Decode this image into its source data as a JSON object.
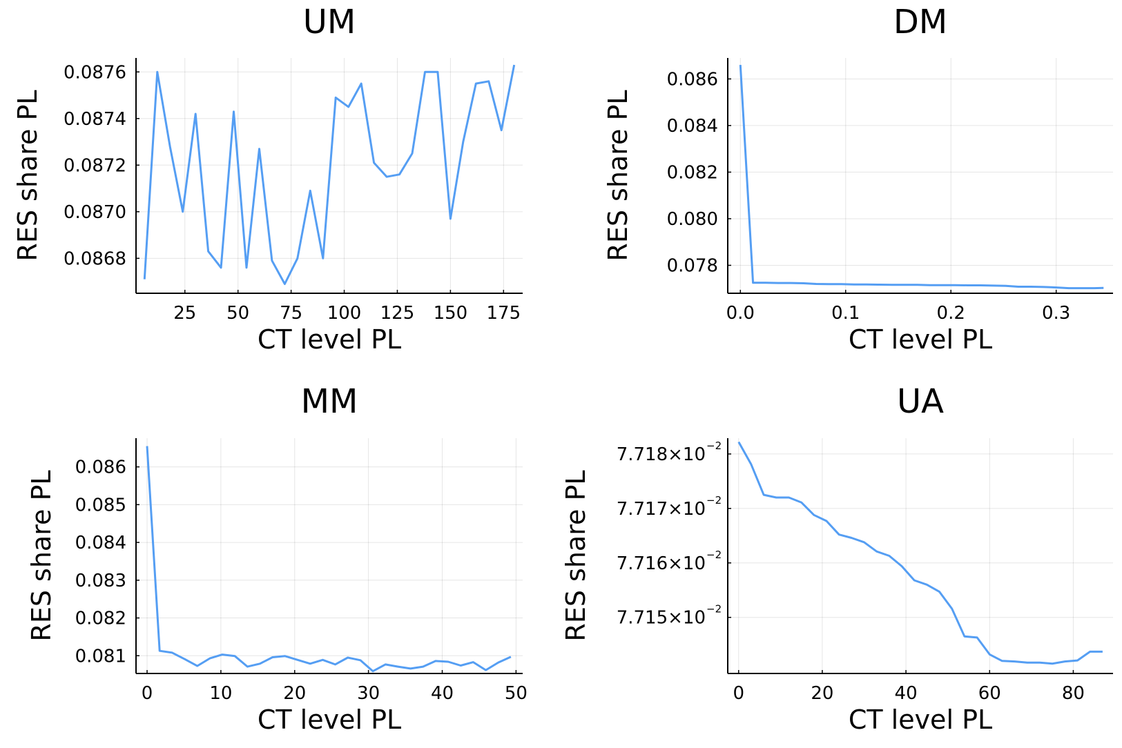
{
  "chart_data": [
    {
      "type": "line",
      "title": "UM",
      "xlabel": "CT level PL",
      "ylabel": "RES share PL",
      "xlim": [
        2,
        184
      ],
      "ylim": [
        0.08665,
        0.08766
      ],
      "xticks": [
        25,
        50,
        75,
        100,
        125,
        150,
        175
      ],
      "xtick_labels": [
        "25",
        "50",
        "75",
        "100",
        "125",
        "150",
        "175"
      ],
      "yticks": [
        0.0868,
        0.087,
        0.0872,
        0.0874,
        0.0876
      ],
      "ytick_labels": [
        "0.0868",
        "0.0870",
        "0.0872",
        "0.0874",
        "0.0876"
      ],
      "grid": true,
      "color": "#559ef3",
      "series": [
        {
          "x": [
            6,
            12,
            18,
            24,
            30,
            36,
            42,
            48,
            54,
            60,
            66,
            72,
            78,
            84,
            90,
            96,
            102,
            108,
            114,
            120,
            126,
            132,
            138,
            144,
            150,
            156,
            162,
            168,
            174,
            180
          ],
          "y": [
            0.08671,
            0.0876,
            0.08728,
            0.087,
            0.08742,
            0.08683,
            0.08676,
            0.08743,
            0.08676,
            0.08727,
            0.08679,
            0.08669,
            0.0868,
            0.08709,
            0.0868,
            0.08749,
            0.08745,
            0.08755,
            0.08721,
            0.08715,
            0.08716,
            0.08725,
            0.0876,
            0.0876,
            0.08697,
            0.0873,
            0.08755,
            0.08756,
            0.08735,
            0.08763
          ]
        }
      ]
    },
    {
      "type": "line",
      "title": "DM",
      "xlabel": "CT level PL",
      "ylabel": "RES share PL",
      "xlim": [
        -0.012,
        0.354
      ],
      "ylim": [
        0.0768,
        0.0869
      ],
      "xticks": [
        0,
        0.1,
        0.2,
        0.3
      ],
      "xtick_labels": [
        "0.0",
        "0.1",
        "0.2",
        "0.3"
      ],
      "yticks": [
        0.078,
        0.08,
        0.082,
        0.084,
        0.086
      ],
      "ytick_labels": [
        "0.078",
        "0.080",
        "0.082",
        "0.084",
        "0.086"
      ],
      "grid": true,
      "color": "#559ef3",
      "series": [
        {
          "x": [
            0,
            0.012,
            0.024,
            0.036,
            0.048,
            0.06,
            0.072,
            0.084,
            0.096,
            0.108,
            0.12,
            0.132,
            0.144,
            0.156,
            0.168,
            0.18,
            0.192,
            0.204,
            0.216,
            0.228,
            0.24,
            0.252,
            0.264,
            0.276,
            0.288,
            0.3,
            0.312,
            0.324,
            0.336,
            0.345
          ],
          "y": [
            0.0866,
            0.07725,
            0.07725,
            0.07724,
            0.07724,
            0.07723,
            0.0772,
            0.07719,
            0.07719,
            0.07718,
            0.07718,
            0.07717,
            0.07716,
            0.07716,
            0.07716,
            0.07715,
            0.07715,
            0.07715,
            0.07714,
            0.07714,
            0.07713,
            0.07712,
            0.07708,
            0.07708,
            0.07707,
            0.07705,
            0.07702,
            0.07702,
            0.07702,
            0.07703
          ]
        }
      ]
    },
    {
      "type": "line",
      "title": "MM",
      "xlabel": "CT level PL",
      "ylabel": "RES share PL",
      "xlim": [
        -1.5,
        50.9
      ],
      "ylim": [
        0.08053,
        0.08676
      ],
      "xticks": [
        0,
        10,
        20,
        30,
        40,
        50
      ],
      "xtick_labels": [
        "0",
        "10",
        "20",
        "30",
        "40",
        "50"
      ],
      "yticks": [
        0.081,
        0.082,
        0.083,
        0.084,
        0.085,
        0.086
      ],
      "ytick_labels": [
        "0.081",
        "0.082",
        "0.083",
        "0.084",
        "0.085",
        "0.086"
      ],
      "grid": true,
      "color": "#559ef3",
      "series": [
        {
          "x": [
            0,
            1.7,
            3.4,
            5.1,
            6.8,
            8.5,
            10.2,
            11.9,
            13.6,
            15.3,
            17,
            18.7,
            20.4,
            22.1,
            23.8,
            25.5,
            27.2,
            28.9,
            30.6,
            32.3,
            34,
            35.7,
            37.4,
            39.1,
            40.8,
            42.5,
            44.2,
            45.9,
            47.6,
            49.3
          ],
          "y": [
            0.08655,
            0.08113,
            0.08108,
            0.08091,
            0.08073,
            0.08093,
            0.08103,
            0.08099,
            0.08071,
            0.08079,
            0.08096,
            0.08099,
            0.08089,
            0.08079,
            0.08089,
            0.08077,
            0.08095,
            0.08088,
            0.08059,
            0.08077,
            0.08071,
            0.08066,
            0.08071,
            0.08086,
            0.08084,
            0.08074,
            0.08083,
            0.08062,
            0.08082,
            0.08097
          ]
        }
      ]
    },
    {
      "type": "line",
      "title": "UA",
      "xlabel": "CT level PL",
      "ylabel": "RES share PL",
      "xlim": [
        -2.6,
        89.5
      ],
      "ylim": [
        0.0771397,
        0.0771829
      ],
      "xticks": [
        0,
        20,
        40,
        60,
        80
      ],
      "xtick_labels": [
        "0",
        "20",
        "40",
        "60",
        "80"
      ],
      "yticks": [
        0.07715,
        0.07716,
        0.07717,
        0.07718
      ],
      "ytick_labels": [
        "7.715×10",
        "7.716×10",
        "7.717×10",
        "7.718×10"
      ],
      "ytick_exponent": "−2",
      "grid": true,
      "color": "#559ef3",
      "series": [
        {
          "x": [
            0,
            3,
            6,
            9,
            12,
            15,
            18,
            21,
            24,
            27,
            30,
            33,
            36,
            39,
            42,
            45,
            48,
            51,
            54,
            57,
            60,
            63,
            66,
            69,
            72,
            75,
            78,
            81,
            84,
            87
          ],
          "y": [
            0.0771822,
            0.0771781,
            0.0771725,
            0.077172,
            0.077172,
            0.0771711,
            0.0771688,
            0.0771677,
            0.0771652,
            0.0771646,
            0.0771638,
            0.0771621,
            0.0771613,
            0.0771594,
            0.0771568,
            0.077156,
            0.0771547,
            0.0771516,
            0.0771465,
            0.0771463,
            0.0771432,
            0.077142,
            0.0771419,
            0.0771417,
            0.0771417,
            0.0771415,
            0.0771419,
            0.0771421,
            0.0771437,
            0.0771437
          ]
        }
      ]
    }
  ]
}
